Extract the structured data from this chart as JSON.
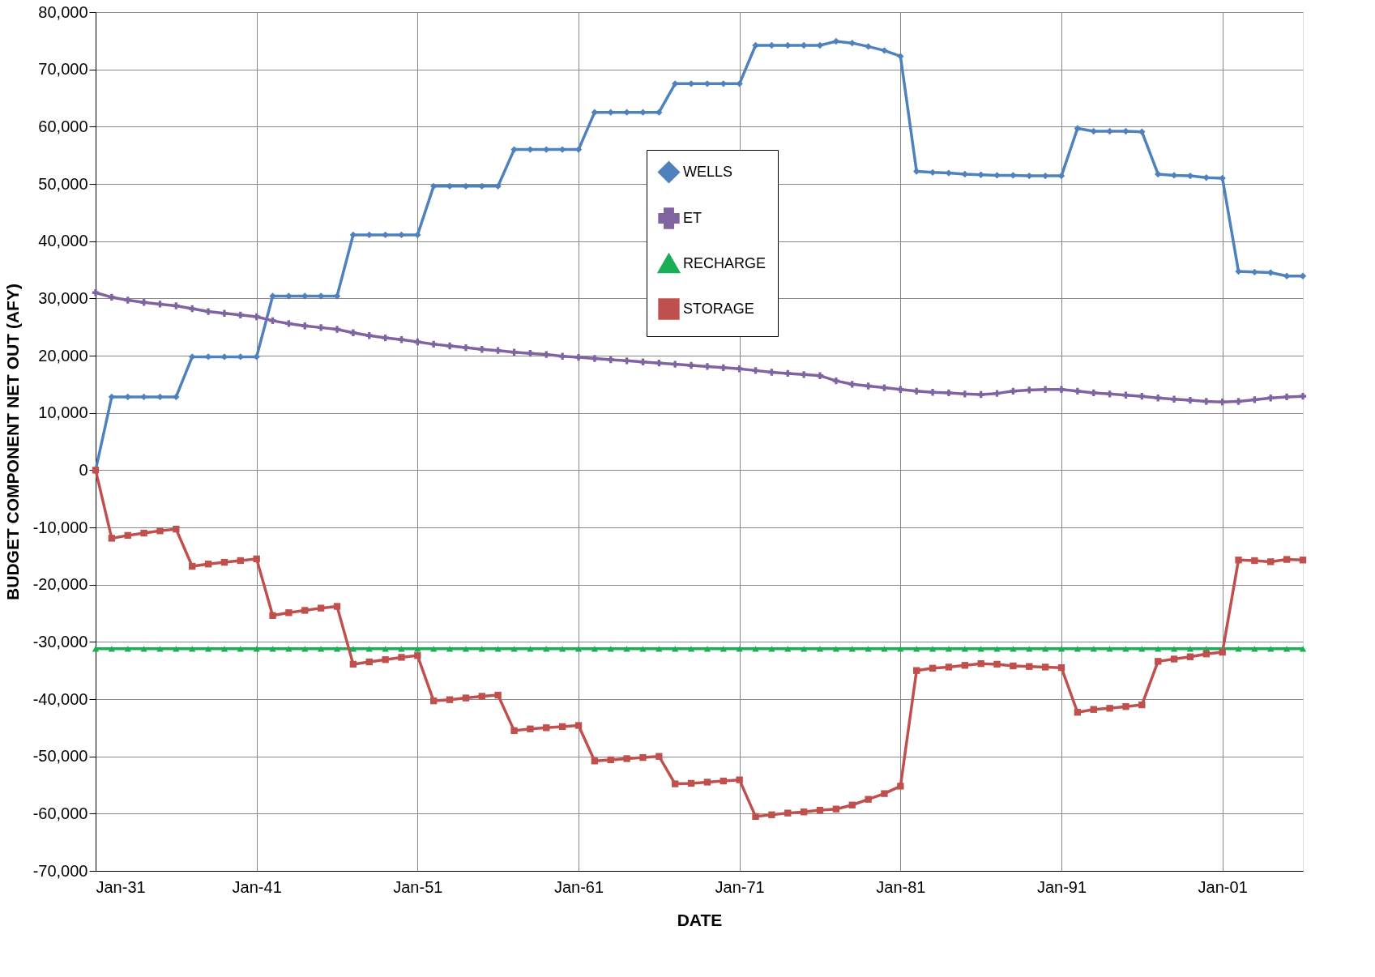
{
  "chart_data": {
    "type": "line",
    "xlabel": "DATE",
    "ylabel": "BUDGET COMPONENT NET OUT (AFY)",
    "x": [
      "1931-01",
      "1932-01",
      "1933-01",
      "1934-01",
      "1935-01",
      "1936-01",
      "1937-01",
      "1938-01",
      "1939-01",
      "1940-01",
      "1941-01",
      "1942-01",
      "1943-01",
      "1944-01",
      "1945-01",
      "1946-01",
      "1947-01",
      "1948-01",
      "1949-01",
      "1950-01",
      "1951-01",
      "1952-01",
      "1953-01",
      "1954-01",
      "1955-01",
      "1956-01",
      "1957-01",
      "1958-01",
      "1959-01",
      "1960-01",
      "1961-01",
      "1962-01",
      "1963-01",
      "1964-01",
      "1965-01",
      "1966-01",
      "1967-01",
      "1968-01",
      "1969-01",
      "1970-01",
      "1971-01",
      "1972-01",
      "1973-01",
      "1974-01",
      "1975-01",
      "1976-01",
      "1977-01",
      "1978-01",
      "1979-01",
      "1980-01",
      "1981-01",
      "1982-01",
      "1983-01",
      "1984-01",
      "1985-01",
      "1986-01",
      "1987-01",
      "1988-01",
      "1989-01",
      "1990-01",
      "1991-01",
      "1992-01",
      "1993-01",
      "1994-01",
      "1995-01",
      "1996-01",
      "1997-01",
      "1998-01",
      "1999-01",
      "2000-01",
      "2001-01",
      "2002-01",
      "2003-01",
      "2004-01",
      "2005-01",
      "2006-01"
    ],
    "series": [
      {
        "name": "WELLS",
        "color": "#4f81bd",
        "marker": "diamond",
        "values": [
          0,
          12800,
          12800,
          12800,
          12800,
          12800,
          19800,
          19800,
          19800,
          19800,
          19800,
          30400,
          30400,
          30400,
          30400,
          30400,
          41100,
          41100,
          41100,
          41100,
          41100,
          49600,
          49600,
          49600,
          49600,
          49600,
          56000,
          56000,
          56000,
          56000,
          56000,
          62500,
          62500,
          62500,
          62500,
          62500,
          67500,
          67500,
          67500,
          67500,
          67500,
          74200,
          74200,
          74200,
          74200,
          74200,
          74900,
          74600,
          74000,
          73300,
          72300,
          52200,
          52000,
          51900,
          51700,
          51600,
          51500,
          51500,
          51400,
          51400,
          51400,
          59700,
          59200,
          59200,
          59200,
          59100,
          51700,
          51500,
          51400,
          51100,
          51000,
          34700,
          34600,
          34500,
          33900,
          33900
        ]
      },
      {
        "name": "ET",
        "color": "#8064a2",
        "marker": "cross",
        "values": [
          31000,
          30200,
          29700,
          29300,
          29000,
          28700,
          28200,
          27700,
          27400,
          27100,
          26800,
          26100,
          25600,
          25200,
          24900,
          24600,
          24000,
          23500,
          23100,
          22800,
          22400,
          22000,
          21700,
          21400,
          21100,
          20900,
          20600,
          20400,
          20200,
          19900,
          19700,
          19500,
          19300,
          19100,
          18900,
          18700,
          18500,
          18300,
          18100,
          17900,
          17700,
          17400,
          17100,
          16900,
          16700,
          16500,
          15600,
          15000,
          14700,
          14400,
          14100,
          13800,
          13600,
          13500,
          13300,
          13200,
          13400,
          13800,
          14000,
          14100,
          14100,
          13800,
          13500,
          13300,
          13100,
          12900,
          12600,
          12400,
          12200,
          12000,
          11900,
          12000,
          12300,
          12600,
          12800,
          12900
        ]
      },
      {
        "name": "RECHARGE",
        "color": "#1aaf54",
        "marker": "triangle",
        "values": [
          -31200,
          -31200,
          -31200,
          -31200,
          -31200,
          -31200,
          -31200,
          -31200,
          -31200,
          -31200,
          -31200,
          -31200,
          -31200,
          -31200,
          -31200,
          -31200,
          -31200,
          -31200,
          -31200,
          -31200,
          -31200,
          -31200,
          -31200,
          -31200,
          -31200,
          -31200,
          -31200,
          -31200,
          -31200,
          -31200,
          -31200,
          -31200,
          -31200,
          -31200,
          -31200,
          -31200,
          -31200,
          -31200,
          -31200,
          -31200,
          -31200,
          -31200,
          -31200,
          -31200,
          -31200,
          -31200,
          -31200,
          -31200,
          -31200,
          -31200,
          -31200,
          -31200,
          -31200,
          -31200,
          -31200,
          -31200,
          -31200,
          -31200,
          -31200,
          -31200,
          -31200,
          -31200,
          -31200,
          -31200,
          -31200,
          -31200,
          -31200,
          -31200,
          -31200,
          -31200,
          -31200,
          -31200,
          -31200,
          -31200,
          -31200,
          -31200
        ]
      },
      {
        "name": "STORAGE",
        "color": "#c0504d",
        "marker": "square",
        "values": [
          0,
          -11900,
          -11400,
          -11000,
          -10600,
          -10300,
          -16800,
          -16400,
          -16100,
          -15800,
          -15500,
          -25400,
          -24900,
          -24500,
          -24100,
          -23800,
          -33900,
          -33500,
          -33100,
          -32700,
          -32400,
          -40300,
          -40100,
          -39800,
          -39500,
          -39300,
          -45500,
          -45200,
          -45000,
          -44800,
          -44600,
          -50800,
          -50600,
          -50400,
          -50200,
          -50000,
          -54800,
          -54700,
          -54500,
          -54300,
          -54100,
          -60500,
          -60200,
          -59900,
          -59700,
          -59400,
          -59200,
          -58500,
          -57500,
          -56500,
          -55200,
          -35000,
          -34600,
          -34400,
          -34100,
          -33800,
          -33900,
          -34200,
          -34300,
          -34400,
          -34500,
          -42300,
          -41800,
          -41600,
          -41300,
          -41000,
          -33400,
          -33000,
          -32600,
          -32100,
          -31800,
          -15700,
          -15800,
          -16000,
          -15600,
          -15700
        ]
      }
    ],
    "xlim": [
      "1931-01",
      "2006-01"
    ],
    "xticks": [
      {
        "value": "1931-01",
        "label": "Jan-31"
      },
      {
        "value": "1941-01",
        "label": "Jan-41"
      },
      {
        "value": "1951-01",
        "label": "Jan-51"
      },
      {
        "value": "1961-01",
        "label": "Jan-61"
      },
      {
        "value": "1971-01",
        "label": "Jan-71"
      },
      {
        "value": "1981-01",
        "label": "Jan-81"
      },
      {
        "value": "1991-01",
        "label": "Jan-91"
      },
      {
        "value": "2001-01",
        "label": "Jan-01"
      }
    ],
    "ylim": [
      -70000,
      80000
    ],
    "yticks": [
      {
        "value": -70000,
        "label": "-70,000"
      },
      {
        "value": -60000,
        "label": "-60,000"
      },
      {
        "value": -50000,
        "label": "-50,000"
      },
      {
        "value": -40000,
        "label": "-40,000"
      },
      {
        "value": -30000,
        "label": "-30,000"
      },
      {
        "value": -20000,
        "label": "-20,000"
      },
      {
        "value": -10000,
        "label": "-10,000"
      },
      {
        "value": 0,
        "label": "0"
      },
      {
        "value": 10000,
        "label": "10,000"
      },
      {
        "value": 20000,
        "label": "20,000"
      },
      {
        "value": 30000,
        "label": "30,000"
      },
      {
        "value": 40000,
        "label": "40,000"
      },
      {
        "value": 50000,
        "label": "50,000"
      },
      {
        "value": 60000,
        "label": "60,000"
      },
      {
        "value": 70000,
        "label": "70,000"
      },
      {
        "value": 80000,
        "label": "80,000"
      }
    ],
    "grid": true,
    "legend": "top",
    "line_style": "solid"
  }
}
